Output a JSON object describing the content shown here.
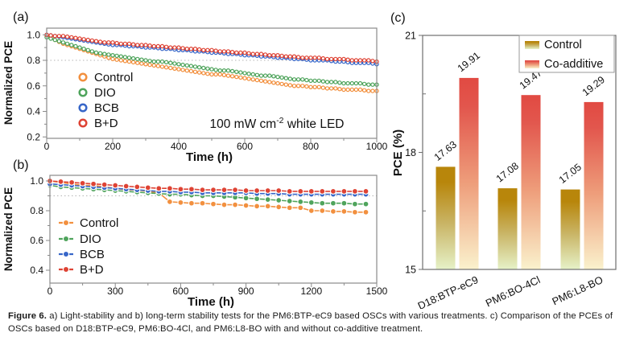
{
  "figure": {
    "caption": {
      "label": "Figure 6.",
      "text": "a) Light-stability and b) long-term stability tests for the PM6:BTP-eC9 based OSCs with various treatments. c) Comparison of the PCEs of OSCs based on D18:BTP-eC9, PM6:BO-4Cl, and PM6:L8-BO with and without co-additive treatment."
    }
  },
  "colors": {
    "control_line": "#F2903F",
    "dio_line": "#4FA45C",
    "bcb_line": "#3766C8",
    "bd_line": "#DE4334",
    "axis_ab": "#8a8a8a",
    "axis_c": "#6f6f6f",
    "ref_line": "#b4b4b4",
    "control_bar_top": "#B8860B",
    "control_bar_bottom": "#E6F2C8",
    "coadditive_bar_top": "#E14A42",
    "coadditive_bar_bottom": "#FAF2CD"
  },
  "chart_data": [
    {
      "panel": "a",
      "panel_label": "(a)",
      "type": "line",
      "xlabel": "Time (h)",
      "ylabel": "Normalized PCE",
      "xlim": [
        0,
        1000
      ],
      "xticks": [
        0,
        200,
        400,
        600,
        800,
        1000
      ],
      "xminor": [
        100,
        300,
        500,
        700,
        900
      ],
      "ylim": [
        0.2,
        1.05
      ],
      "yticks": [
        0.2,
        0.4,
        0.6,
        0.8,
        1.0
      ],
      "yminor": [
        0.3,
        0.5,
        0.7,
        0.9
      ],
      "ref_line_y": 0.8,
      "grid": false,
      "legend_position": "left-middle",
      "annotation": {
        "base": "100 mW cm",
        "sup": "-2",
        "rest": " white LED"
      },
      "x_step": 25,
      "x_start": 0,
      "series": [
        {
          "name": "Control",
          "color": "#F2903F",
          "values": [
            0.99,
            0.96,
            0.93,
            0.91,
            0.89,
            0.87,
            0.85,
            0.83,
            0.81,
            0.8,
            0.79,
            0.78,
            0.77,
            0.76,
            0.75,
            0.74,
            0.73,
            0.72,
            0.71,
            0.7,
            0.69,
            0.69,
            0.68,
            0.67,
            0.66,
            0.65,
            0.64,
            0.63,
            0.62,
            0.61,
            0.6,
            0.6,
            0.59,
            0.59,
            0.58,
            0.58,
            0.57,
            0.57,
            0.57,
            0.56,
            0.56
          ]
        },
        {
          "name": "DIO",
          "color": "#4FA45C",
          "values": [
            0.98,
            0.96,
            0.94,
            0.92,
            0.9,
            0.88,
            0.86,
            0.85,
            0.84,
            0.83,
            0.82,
            0.81,
            0.8,
            0.79,
            0.79,
            0.78,
            0.77,
            0.76,
            0.75,
            0.74,
            0.73,
            0.72,
            0.72,
            0.71,
            0.7,
            0.69,
            0.68,
            0.68,
            0.67,
            0.66,
            0.65,
            0.65,
            0.64,
            0.64,
            0.63,
            0.63,
            0.62,
            0.62,
            0.62,
            0.61,
            0.61
          ]
        },
        {
          "name": "BCB",
          "color": "#3766C8",
          "values": [
            1.0,
            0.99,
            0.98,
            0.97,
            0.96,
            0.95,
            0.94,
            0.93,
            0.92,
            0.92,
            0.91,
            0.91,
            0.9,
            0.9,
            0.89,
            0.89,
            0.88,
            0.88,
            0.87,
            0.87,
            0.86,
            0.86,
            0.85,
            0.85,
            0.84,
            0.84,
            0.83,
            0.83,
            0.82,
            0.82,
            0.81,
            0.81,
            0.8,
            0.8,
            0.8,
            0.79,
            0.79,
            0.78,
            0.78,
            0.78,
            0.77
          ]
        },
        {
          "name": "B+D",
          "color": "#DE4334",
          "values": [
            1.0,
            0.99,
            0.99,
            0.98,
            0.97,
            0.96,
            0.95,
            0.94,
            0.94,
            0.93,
            0.93,
            0.92,
            0.92,
            0.91,
            0.91,
            0.9,
            0.9,
            0.89,
            0.89,
            0.88,
            0.88,
            0.87,
            0.87,
            0.86,
            0.86,
            0.85,
            0.85,
            0.84,
            0.84,
            0.83,
            0.83,
            0.82,
            0.82,
            0.82,
            0.81,
            0.81,
            0.81,
            0.8,
            0.8,
            0.8,
            0.79
          ]
        }
      ]
    },
    {
      "panel": "b",
      "panel_label": "(b)",
      "type": "line",
      "xlabel": "Time (h)",
      "ylabel": "Normalized PCE",
      "xlim": [
        0,
        1500
      ],
      "xticks": [
        0,
        300,
        600,
        900,
        1200,
        1500
      ],
      "xminor": [
        150,
        450,
        750,
        1050,
        1350
      ],
      "ylim": [
        0.35,
        1.04
      ],
      "yticks": [
        0.4,
        0.6,
        0.8,
        1.0
      ],
      "yminor": [
        0.5,
        0.7,
        0.9
      ],
      "ref_line_y": 0.9,
      "grid": false,
      "legend_position": "left-middle",
      "x_step": 50,
      "x_start": 0,
      "series": [
        {
          "name": "Control",
          "color": "#F2903F",
          "values": [
            1.0,
            0.99,
            0.98,
            0.97,
            0.97,
            0.96,
            0.95,
            0.94,
            0.94,
            0.93,
            0.92,
            0.86,
            0.855,
            0.85,
            0.85,
            0.845,
            0.84,
            0.84,
            0.835,
            0.83,
            0.83,
            0.825,
            0.82,
            0.82,
            0.8,
            0.8,
            0.795,
            0.795,
            0.79,
            0.79
          ]
        },
        {
          "name": "DIO",
          "color": "#4FA45C",
          "values": [
            0.97,
            0.96,
            0.955,
            0.95,
            0.945,
            0.94,
            0.935,
            0.93,
            0.925,
            0.92,
            0.915,
            0.91,
            0.91,
            0.905,
            0.9,
            0.9,
            0.895,
            0.89,
            0.885,
            0.88,
            0.875,
            0.87,
            0.865,
            0.86,
            0.855,
            0.85,
            0.85,
            0.85,
            0.845,
            0.845
          ]
        },
        {
          "name": "BCB",
          "color": "#3766C8",
          "values": [
            0.98,
            0.975,
            0.97,
            0.965,
            0.96,
            0.955,
            0.95,
            0.945,
            0.94,
            0.935,
            0.93,
            0.93,
            0.925,
            0.925,
            0.92,
            0.92,
            0.92,
            0.92,
            0.92,
            0.915,
            0.915,
            0.915,
            0.91,
            0.91,
            0.91,
            0.91,
            0.91,
            0.91,
            0.91,
            0.91
          ]
        },
        {
          "name": "B+D",
          "color": "#DE4334",
          "values": [
            1.0,
            0.995,
            0.99,
            0.985,
            0.98,
            0.975,
            0.97,
            0.965,
            0.96,
            0.955,
            0.95,
            0.95,
            0.945,
            0.945,
            0.94,
            0.94,
            0.94,
            0.94,
            0.935,
            0.935,
            0.935,
            0.935,
            0.93,
            0.93,
            0.93,
            0.93,
            0.93,
            0.93,
            0.93,
            0.93
          ]
        }
      ]
    },
    {
      "panel": "c",
      "panel_label": "(c)",
      "type": "bar",
      "ylabel": "PCE (%)",
      "ylim": [
        15,
        21
      ],
      "yticks": [
        15,
        18,
        21
      ],
      "yminor": [
        16.5,
        19.5
      ],
      "categories": [
        "D18:BTP-eC9",
        "PM6:BO-4Cl",
        "PM6:L8-BO"
      ],
      "series": [
        {
          "name": "Control",
          "values": [
            17.63,
            17.08,
            17.05
          ],
          "gradient": [
            "#B8860B",
            "#B8860B",
            "#C9B465",
            "#E6F2C8"
          ]
        },
        {
          "name": "Co-additive",
          "values": [
            19.91,
            19.47,
            19.29
          ],
          "gradient": [
            "#E14A42",
            "#E2564D",
            "#EE9E7B",
            "#FAF2CD"
          ]
        }
      ],
      "value_labels": [
        "17.63",
        "19.91",
        "17.08",
        "19.47",
        "17.05",
        "19.29"
      ],
      "legend_position": "top-right"
    }
  ]
}
